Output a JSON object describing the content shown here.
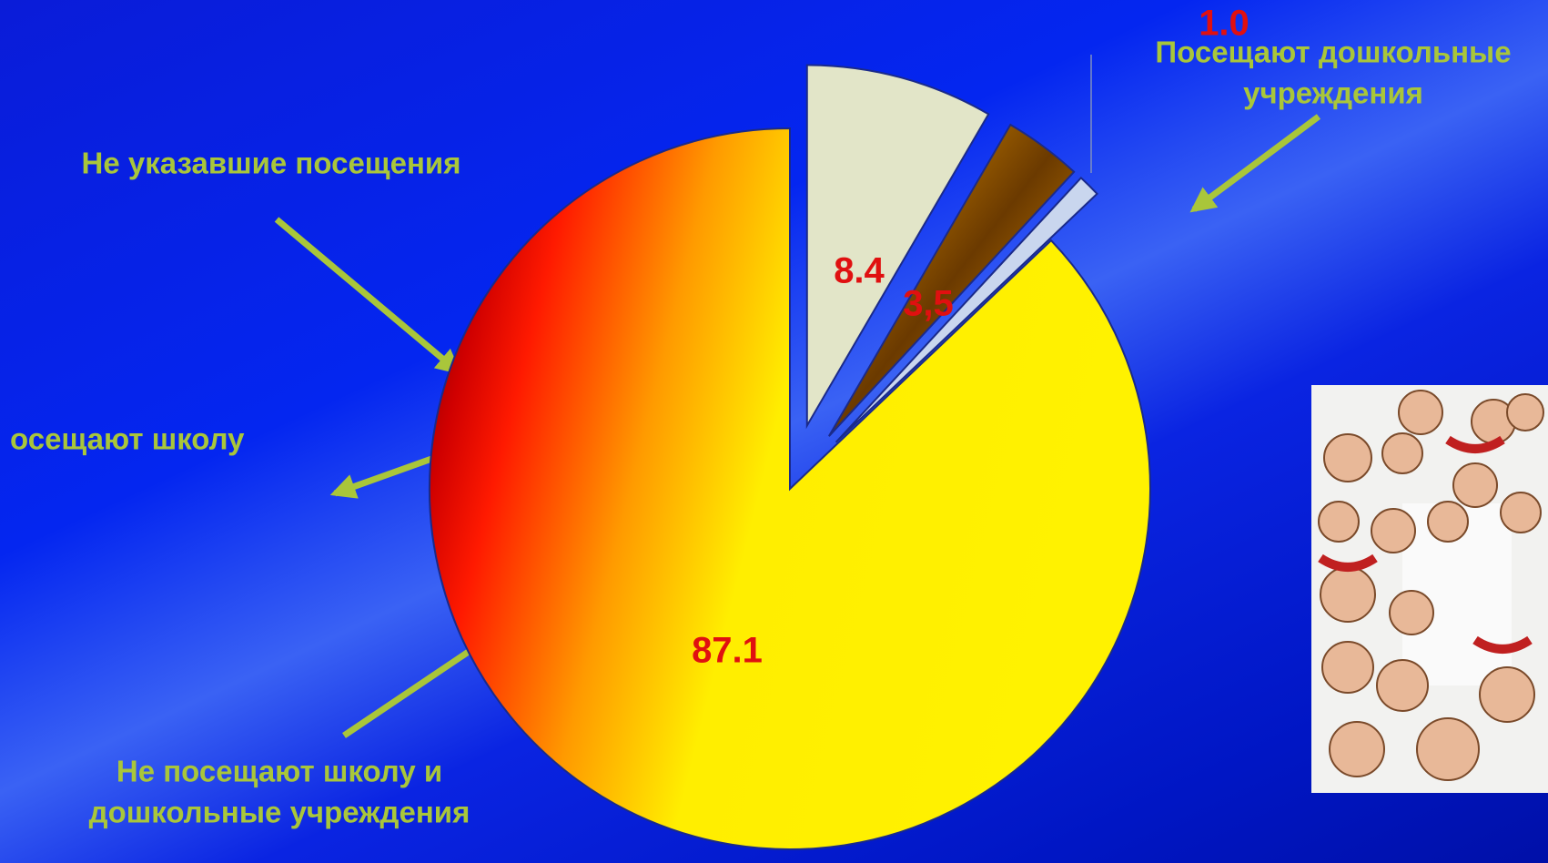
{
  "chart_data": {
    "type": "pie",
    "values": [
      8.4,
      3.5,
      1.0,
      87.1
    ],
    "value_labels": [
      "8.4",
      "3,5",
      "1.0",
      "87.1"
    ],
    "colors": [
      "#e2e5c8",
      "#f5a000",
      "#c9d6ee",
      "#ffee00"
    ],
    "annotations": [
      [
        "Не указавшие посещения"
      ],
      [
        "осещают школу"
      ],
      [
        "Не посещают  школу и",
        "дошкольные учреждения"
      ],
      [
        "Посещают дошкольные",
        "учреждения"
      ]
    ]
  }
}
